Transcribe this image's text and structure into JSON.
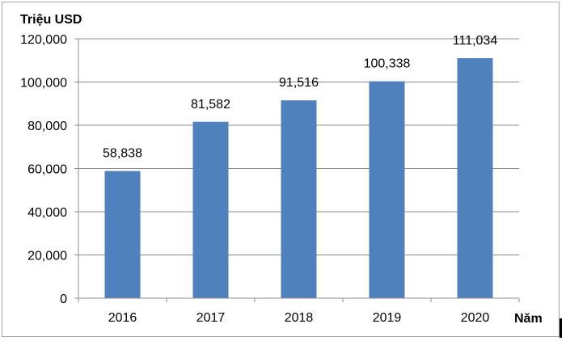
{
  "chart_data": {
    "type": "bar",
    "ylabel": "Triệu USD",
    "xlabel": "Năm",
    "categories": [
      "2016",
      "2017",
      "2018",
      "2019",
      "2020"
    ],
    "values": [
      58838,
      81582,
      91516,
      100338,
      111034
    ],
    "value_labels": [
      "58,838",
      "81,582",
      "91,516",
      "100,338",
      "111,034"
    ],
    "ylim": [
      0,
      120000
    ],
    "yticks": [
      0,
      20000,
      40000,
      60000,
      80000,
      100000,
      120000
    ],
    "ytick_labels": [
      "0",
      "20,000",
      "40,000",
      "60,000",
      "80,000",
      "100,000",
      "120,000"
    ],
    "grid": true,
    "bar_color": "#4f81bd"
  }
}
